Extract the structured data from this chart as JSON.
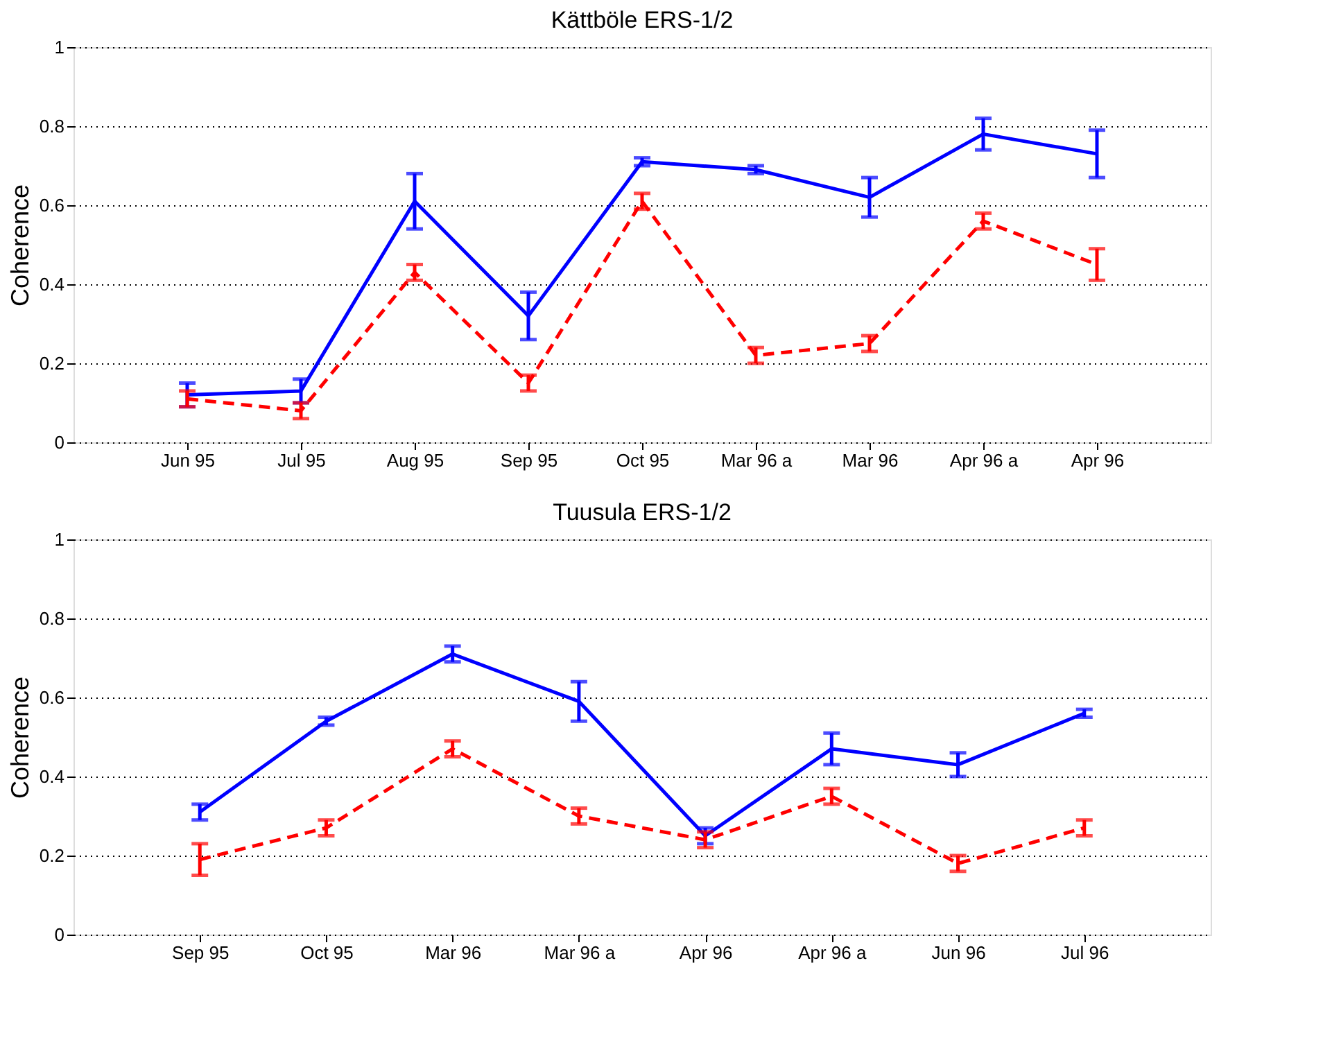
{
  "chart_data": [
    {
      "type": "line",
      "title": "Kättböle ERS-1/2",
      "ylabel": "Coherence",
      "categories": [
        "Jun 95",
        "Jul 95",
        "Aug 95",
        "Sep 95",
        "Oct 95",
        "Mar 96 a",
        "Mar 96",
        "Apr 96 a",
        "Apr 96"
      ],
      "ylim": [
        0,
        1
      ],
      "yticks": [
        0,
        0.2,
        0.4,
        0.6,
        0.8,
        1
      ],
      "grid": "y",
      "marker": "none",
      "series": [
        {
          "color": "#0000ff",
          "line_style": "solid",
          "values": [
            0.12,
            0.13,
            0.61,
            0.32,
            0.71,
            0.69,
            0.62,
            0.78,
            0.73
          ],
          "errors": [
            0.03,
            0.03,
            0.07,
            0.06,
            0.01,
            0.01,
            0.05,
            0.04,
            0.06
          ]
        },
        {
          "color": "#ff0000",
          "line_style": "dashed",
          "values": [
            0.11,
            0.08,
            0.43,
            0.15,
            0.61,
            0.22,
            0.25,
            0.56,
            0.45
          ],
          "errors": [
            0.02,
            0.02,
            0.02,
            0.02,
            0.02,
            0.02,
            0.02,
            0.02,
            0.04
          ]
        }
      ]
    },
    {
      "type": "line",
      "title": "Tuusula ERS-1/2",
      "ylabel": "Coherence",
      "categories": [
        "Sep 95",
        "Oct 95",
        "Mar 96",
        "Mar 96 a",
        "Apr 96",
        "Apr 96 a",
        "Jun 96",
        "Jul 96"
      ],
      "ylim": [
        0,
        1
      ],
      "yticks": [
        0,
        0.2,
        0.4,
        0.6,
        0.8,
        1
      ],
      "grid": "y",
      "marker": "none",
      "series": [
        {
          "color": "#0000ff",
          "line_style": "solid",
          "values": [
            0.31,
            0.54,
            0.71,
            0.59,
            0.25,
            0.47,
            0.43,
            0.56
          ],
          "errors": [
            0.02,
            0.01,
            0.02,
            0.05,
            0.02,
            0.04,
            0.03,
            0.01
          ]
        },
        {
          "color": "#ff0000",
          "line_style": "dashed",
          "values": [
            0.19,
            0.27,
            0.47,
            0.3,
            0.24,
            0.35,
            0.18,
            0.27
          ],
          "errors": [
            0.04,
            0.02,
            0.02,
            0.02,
            0.02,
            0.02,
            0.02,
            0.02
          ]
        }
      ]
    }
  ]
}
